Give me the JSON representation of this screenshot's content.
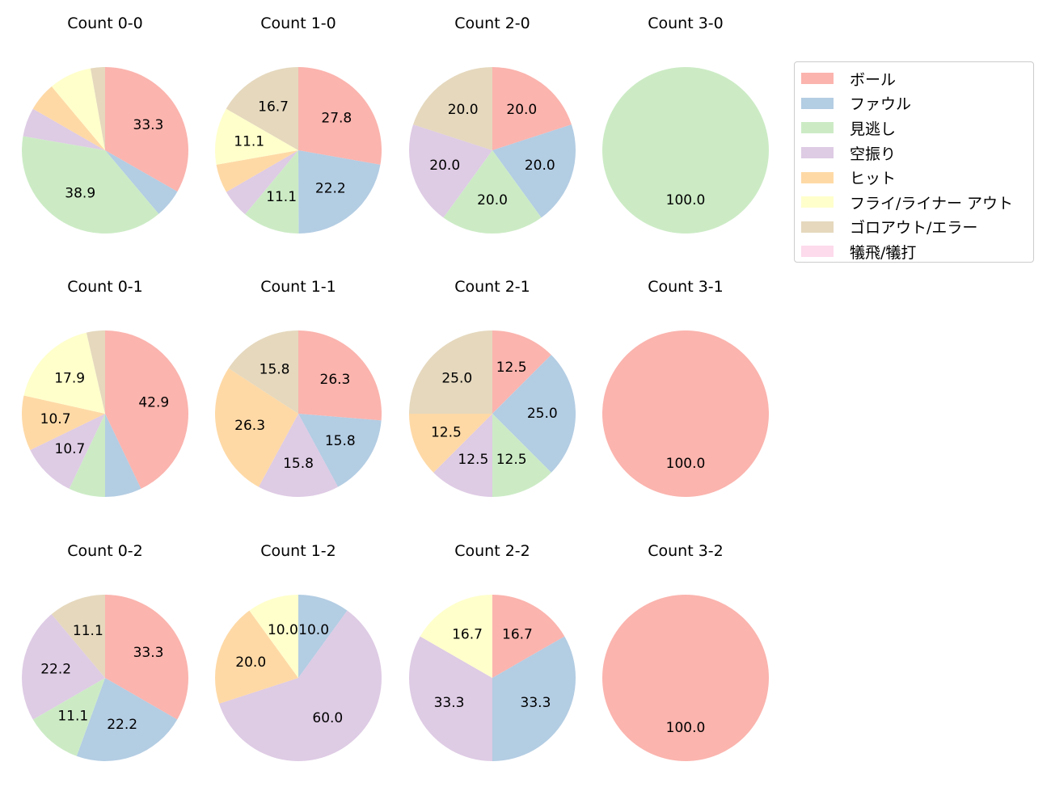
{
  "chart_data": {
    "type": "pie",
    "legend": {
      "placement": "top-right",
      "entries": [
        "ボール",
        "ファウル",
        "見逃し",
        "空振り",
        "ヒット",
        "フライ/ライナー アウト",
        "ゴロアウト/エラー",
        "犠飛/犠打"
      ]
    },
    "colors": [
      "#fbb4ae",
      "#b3cde3",
      "#ccebc5",
      "#decbe4",
      "#fed9a6",
      "#ffffcc",
      "#e5d8bd",
      "#fddaec"
    ],
    "start_angle": 90,
    "direction": "clockwise",
    "label_min_percent": 10,
    "charts": [
      {
        "title": "Count 0-0",
        "values": [
          33.3,
          5.6,
          38.9,
          5.6,
          5.6,
          8.3,
          2.8,
          0
        ]
      },
      {
        "title": "Count 1-0",
        "values": [
          27.8,
          22.2,
          11.1,
          5.6,
          5.6,
          11.1,
          16.7,
          0
        ]
      },
      {
        "title": "Count 2-0",
        "values": [
          20.0,
          20.0,
          20.0,
          20.0,
          0,
          0,
          20.0,
          0
        ]
      },
      {
        "title": "Count 3-0",
        "values": [
          0,
          0,
          100.0,
          0,
          0,
          0,
          0,
          0
        ]
      },
      {
        "title": "Count 0-1",
        "values": [
          42.9,
          7.1,
          7.1,
          10.7,
          10.7,
          17.9,
          3.6,
          0
        ]
      },
      {
        "title": "Count 1-1",
        "values": [
          26.3,
          15.8,
          0,
          15.8,
          26.3,
          0,
          15.8,
          0
        ]
      },
      {
        "title": "Count 2-1",
        "values": [
          12.5,
          25.0,
          12.5,
          12.5,
          12.5,
          0,
          25.0,
          0
        ]
      },
      {
        "title": "Count 3-1",
        "values": [
          100.0,
          0,
          0,
          0,
          0,
          0,
          0,
          0
        ]
      },
      {
        "title": "Count 0-2",
        "values": [
          33.3,
          22.2,
          11.1,
          22.2,
          0,
          0,
          11.1,
          0
        ]
      },
      {
        "title": "Count 1-2",
        "values": [
          0,
          10.0,
          0,
          60.0,
          20.0,
          10.0,
          0,
          0
        ]
      },
      {
        "title": "Count 2-2",
        "values": [
          16.7,
          33.3,
          0,
          33.3,
          0,
          16.7,
          0,
          0
        ]
      },
      {
        "title": "Count 3-2",
        "values": [
          100.0,
          0,
          0,
          0,
          0,
          0,
          0,
          0
        ]
      }
    ]
  }
}
